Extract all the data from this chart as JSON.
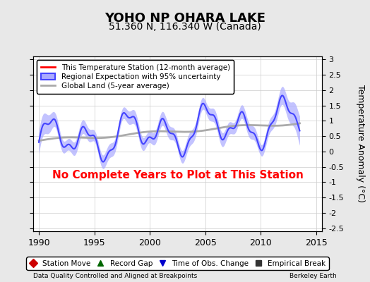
{
  "title": "YOHO NP OHARA LAKE",
  "subtitle": "51.360 N, 116.340 W (Canada)",
  "ylabel": "Temperature Anomaly (°C)",
  "xlabel_left": "Data Quality Controlled and Aligned at Breakpoints",
  "xlabel_right": "Berkeley Earth",
  "no_data_text": "No Complete Years to Plot at This Station",
  "xlim": [
    1989.5,
    2015.5
  ],
  "ylim": [
    -2.6,
    3.1
  ],
  "yticks": [
    -2.5,
    -2,
    -1.5,
    -1,
    -0.5,
    0,
    0.5,
    1,
    1.5,
    2,
    2.5,
    3
  ],
  "xticks": [
    1990,
    1995,
    2000,
    2005,
    2010,
    2015
  ],
  "bg_color": "#e8e8e8",
  "plot_bg_color": "#ffffff",
  "regional_color": "#4444ff",
  "regional_fill_color": "#aaaaff",
  "station_color": "#ff0000",
  "global_land_color": "#aaaaaa",
  "no_data_color": "#ff0000",
  "legend1_items": [
    {
      "label": "This Temperature Station (12-month average)",
      "color": "#ff0000",
      "lw": 2
    },
    {
      "label": "Regional Expectation with 95% uncertainty",
      "color": "#4444ff",
      "fill": "#aaaaff",
      "lw": 2
    },
    {
      "label": "Global Land (5-year average)",
      "color": "#aaaaaa",
      "lw": 2
    }
  ],
  "legend2_items": [
    {
      "label": "Station Move",
      "marker": "D",
      "color": "#cc0000"
    },
    {
      "label": "Record Gap",
      "marker": "^",
      "color": "#006600"
    },
    {
      "label": "Time of Obs. Change",
      "marker": "v",
      "color": "#0000cc"
    },
    {
      "label": "Empirical Break",
      "marker": "s",
      "color": "#333333"
    }
  ]
}
